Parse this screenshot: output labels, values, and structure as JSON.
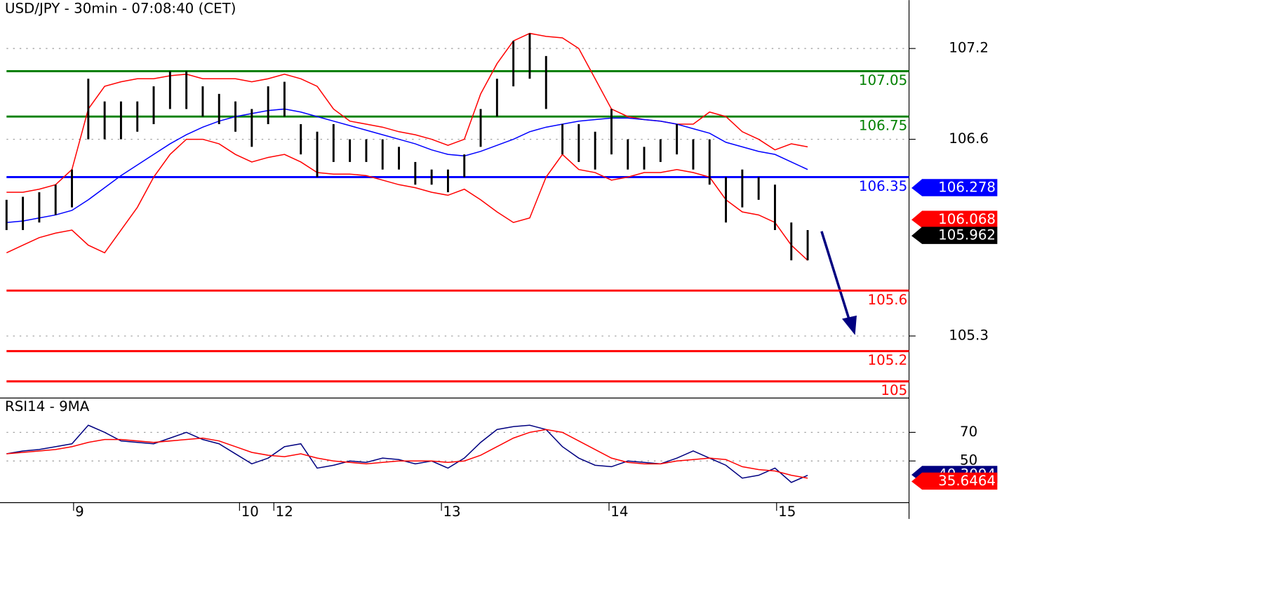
{
  "chart_data": [
    {
      "type": "ohlc",
      "title": "USD/JPY - 30min - 07:08:40 (CET)",
      "xlim": [
        0,
        55.2
      ],
      "ylim": [
        104.89,
        107.52
      ],
      "yticks": [
        107.2,
        106.6,
        105.3
      ],
      "bar_color": "#000000",
      "high": [
        106.2,
        106.22,
        106.25,
        106.3,
        106.4,
        107.0,
        106.85,
        106.85,
        106.85,
        106.95,
        107.05,
        107.05,
        106.95,
        106.9,
        106.85,
        106.8,
        106.95,
        106.98,
        106.7,
        106.65,
        106.7,
        106.6,
        106.6,
        106.6,
        106.55,
        106.45,
        106.4,
        106.4,
        106.5,
        106.8,
        107.0,
        107.25,
        107.3,
        107.15,
        106.7,
        106.7,
        106.65,
        106.8,
        106.6,
        106.55,
        106.6,
        106.7,
        106.6,
        106.6,
        106.35,
        106.4,
        106.35,
        106.3,
        106.05,
        106.0
      ],
      "low": [
        106.0,
        106.0,
        106.05,
        106.1,
        106.15,
        106.6,
        106.6,
        106.6,
        106.65,
        106.7,
        106.8,
        106.8,
        106.75,
        106.7,
        106.65,
        106.55,
        106.7,
        106.75,
        106.5,
        106.35,
        106.45,
        106.45,
        106.45,
        106.4,
        106.4,
        106.3,
        106.3,
        106.25,
        106.35,
        106.55,
        106.75,
        106.95,
        107.0,
        106.8,
        106.5,
        106.45,
        106.4,
        106.5,
        106.4,
        106.4,
        106.45,
        106.5,
        106.4,
        106.3,
        106.05,
        106.15,
        106.2,
        106.0,
        105.8,
        105.8
      ],
      "overlays": [
        {
          "color": "#ff0000",
          "values": [
            106.25,
            106.25,
            106.27,
            106.3,
            106.4,
            106.8,
            106.95,
            106.98,
            107.0,
            107.0,
            107.02,
            107.03,
            107.0,
            107.0,
            107.0,
            106.98,
            107.0,
            107.03,
            107.0,
            106.95,
            106.8,
            106.72,
            106.7,
            106.68,
            106.65,
            106.63,
            106.6,
            106.56,
            106.6,
            106.9,
            107.1,
            107.25,
            107.3,
            107.28,
            107.27,
            107.2,
            107.0,
            106.8,
            106.75,
            106.73,
            106.72,
            106.7,
            106.7,
            106.78,
            106.75,
            106.65,
            106.6,
            106.53,
            106.57,
            106.55
          ]
        },
        {
          "color": "#0000ff",
          "values": [
            106.05,
            106.06,
            106.08,
            106.1,
            106.13,
            106.2,
            106.28,
            106.36,
            106.43,
            106.5,
            106.57,
            106.63,
            106.68,
            106.72,
            106.75,
            106.77,
            106.79,
            106.8,
            106.78,
            106.75,
            106.72,
            106.69,
            106.66,
            106.63,
            106.6,
            106.57,
            106.53,
            106.5,
            106.49,
            106.52,
            106.56,
            106.6,
            106.65,
            106.68,
            106.7,
            106.72,
            106.73,
            106.74,
            106.74,
            106.73,
            106.72,
            106.7,
            106.67,
            106.64,
            106.58,
            106.55,
            106.52,
            106.5,
            106.45,
            106.4
          ]
        },
        {
          "color": "#ff0000",
          "values": [
            105.85,
            105.9,
            105.95,
            105.98,
            106.0,
            105.9,
            105.85,
            106.0,
            106.15,
            106.35,
            106.5,
            106.6,
            106.6,
            106.57,
            106.5,
            106.45,
            106.48,
            106.5,
            106.45,
            106.38,
            106.37,
            106.37,
            106.36,
            106.33,
            106.3,
            106.28,
            106.25,
            106.23,
            106.27,
            106.2,
            106.12,
            106.05,
            106.08,
            106.35,
            106.5,
            106.4,
            106.38,
            106.33,
            106.35,
            106.38,
            106.38,
            106.4,
            106.38,
            106.35,
            106.2,
            106.12,
            106.1,
            106.05,
            105.9,
            105.8
          ]
        }
      ],
      "levels": [
        {
          "value": 107.05,
          "color": "#008000"
        },
        {
          "value": 106.75,
          "color": "#008000"
        },
        {
          "value": 106.35,
          "color": "#0000ff"
        },
        {
          "value": 105.6,
          "color": "#ff0000"
        },
        {
          "value": 105.2,
          "color": "#ff0000"
        },
        {
          "value": 105,
          "color": "#ff0000"
        }
      ],
      "markers": [
        {
          "value": 106.278,
          "color": "#0000ff"
        },
        {
          "value": 106.068,
          "color": "#ff0000"
        },
        {
          "value": 105.962,
          "color": "#000000"
        }
      ]
    },
    {
      "type": "line",
      "title": "RSI14 - 9MA",
      "xlim": [
        0,
        55.2
      ],
      "ylim": [
        20.9,
        94
      ],
      "yticks": [
        70,
        50
      ],
      "xticks": [
        {
          "value": 4.1,
          "label": "9"
        },
        {
          "value": 14.25,
          "label": "10"
        },
        {
          "value": 16.35,
          "label": "12"
        },
        {
          "value": 26.6,
          "label": "13"
        },
        {
          "value": 36.85,
          "label": "14"
        },
        {
          "value": 47.1,
          "label": "15"
        }
      ],
      "series": [
        {
          "color": "#000080",
          "values": [
            55,
            57,
            58,
            60,
            62,
            75,
            70,
            64,
            63,
            62,
            66,
            70,
            65,
            62,
            55,
            48,
            52,
            60,
            62,
            45,
            47,
            50,
            49,
            52,
            51,
            48,
            50,
            45,
            52,
            63,
            72,
            74,
            75,
            72,
            60,
            52,
            47,
            46,
            50,
            49,
            48,
            52,
            57,
            52,
            47,
            38,
            40,
            45,
            35,
            40
          ]
        },
        {
          "color": "#ff0000",
          "values": [
            55,
            56,
            57,
            58,
            60,
            63,
            65,
            65,
            64,
            63,
            64,
            65,
            66,
            64,
            60,
            56,
            54,
            53,
            55,
            52,
            50,
            49,
            48,
            49,
            50,
            50,
            50,
            49,
            50,
            54,
            60,
            66,
            70,
            72,
            70,
            64,
            58,
            52,
            49,
            48,
            48,
            50,
            51,
            52,
            51,
            46,
            44,
            43,
            40,
            38
          ]
        }
      ],
      "markers": [
        {
          "value": 40.3094,
          "color": "#000080"
        },
        {
          "value": 35.6464,
          "color": "#ff0000"
        }
      ]
    }
  ]
}
